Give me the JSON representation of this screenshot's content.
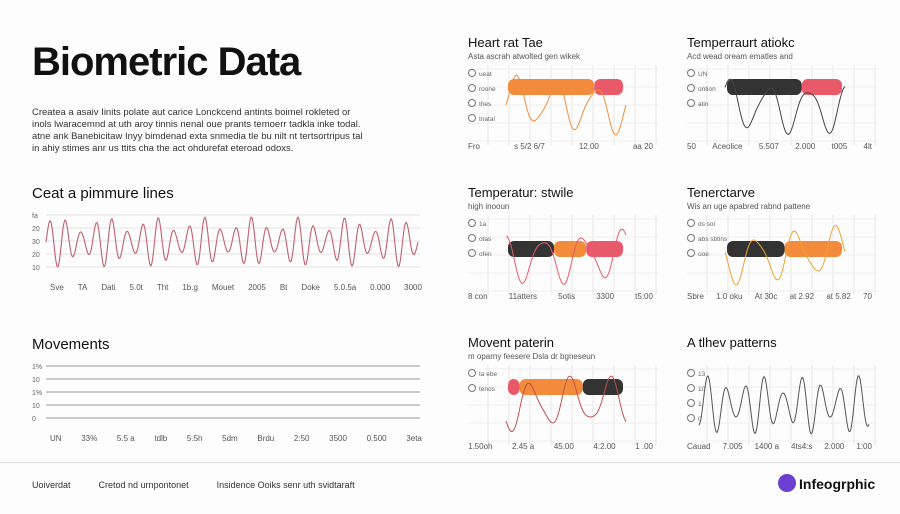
{
  "header": {
    "title": "Biometric Data",
    "body": [
      "Createa a asaiv Iinits polate aut carice Lonckcend antints boimel rokleted or",
      "inols lwaracemnd at uth aroy tinnis nenal oue prants temoerr tadkla inke todal.",
      "atne ank Banebicitaw Inyy bimdenad exta snmedia tle bu nilt nt tertsortripus tal",
      "in ahiy stimes anr us ttits cha the act ohdurefat eteroad odoxs."
    ]
  },
  "left_panels": [
    {
      "title": "Ceat a pimmure lines",
      "yticks": [
        "fa",
        "20",
        "30",
        "20",
        "10"
      ],
      "xticks": [
        "Sve",
        "TA",
        "Dati",
        "5.0t",
        "Tht",
        "1b.g",
        "Mouet",
        "2005",
        "Bt",
        "Doke",
        "5.0.5a",
        "0.000",
        "3000"
      ]
    },
    {
      "title": "Movements",
      "yticks": [
        "1%",
        "10",
        "1%",
        "10",
        "0"
      ],
      "xticks": [
        "UN",
        "33%",
        "5.5 a",
        "tdlb",
        "5.5h",
        "5dm",
        "Brdu",
        "2:50",
        "3500",
        "0.500",
        "3eta"
      ]
    }
  ],
  "cards": [
    {
      "title": "Heart rat Tae",
      "subtitle": "Asta ascrah atwolted gen wikek",
      "legend": [
        "ueat",
        "roone",
        "thes",
        "tnatal"
      ],
      "xticks": [
        "Fro",
        "s 5/2 6/7",
        "12.00",
        "aa 20"
      ]
    },
    {
      "title": "Temperraurt atiokc",
      "subtitle": "Acd wead oream ematles and",
      "legend": [
        "UN",
        "ontion",
        "atin"
      ],
      "xticks": [
        "50",
        "Aceolice",
        "5.507",
        "2.000",
        "t005",
        "4lt"
      ]
    },
    {
      "title": "Temperatur: stwile",
      "subtitle": "high inooun",
      "legend": [
        "1a",
        "otas",
        "ofen"
      ],
      "xticks": [
        "8 con",
        "11atters",
        "5otis",
        "3300",
        "t5:00"
      ]
    },
    {
      "title": "Tenerctarve",
      "subtitle": "Wis an uge apabred rabnd pattene",
      "legend": [
        "ds sol",
        "abs sbtins",
        "ooe"
      ],
      "xticks": [
        "Sbre",
        "1.0 oku",
        "At 30c",
        "at 2.92",
        "at 5.82",
        "70"
      ]
    },
    {
      "title": "Movent paterin",
      "subtitle": "m oparny feesere Dsla dr bgneseun",
      "legend": [
        "ta ebe",
        "tenos"
      ],
      "xticks": [
        "1.50oh",
        "2.45 a",
        "45.00",
        "4:2.00",
        "1 .00"
      ]
    },
    {
      "title": "A tlhev patterns",
      "legend": [
        "13",
        "10",
        "1",
        "0"
      ],
      "xticks": [
        "Cauad",
        "7.005",
        "1400 a",
        "4ts4:s",
        "2.000",
        "1:00"
      ]
    }
  ],
  "footer": {
    "items": [
      "Uoiverdat",
      "Cretod nd urnpontonet",
      "Insidence Ooiks senr uth svidtaraft"
    ],
    "brand": "Infeogrphic"
  }
}
